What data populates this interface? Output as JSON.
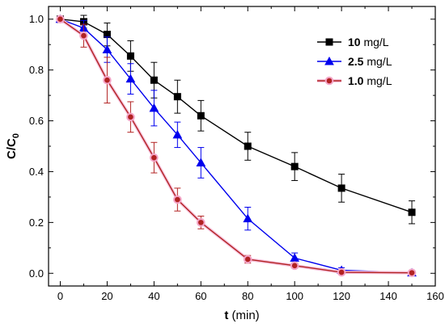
{
  "chart_data": {
    "type": "line",
    "xlabel_bold": "t",
    "xlabel_rest": " (min)",
    "ylabel_main": "C/C",
    "ylabel_sub": "0",
    "xlim": [
      -5,
      160
    ],
    "ylim": [
      -0.05,
      1.05
    ],
    "xticks": [
      0,
      20,
      40,
      60,
      80,
      100,
      120,
      140,
      160
    ],
    "yticks": [
      0.0,
      0.2,
      0.4,
      0.6,
      0.8,
      1.0
    ],
    "ytick_labels": [
      "0.0",
      "0.2",
      "0.4",
      "0.6",
      "0.8",
      "1.0"
    ],
    "legend_position": "top-right",
    "error_bars": true,
    "series": [
      {
        "name": "mg/L",
        "name_bold": "10",
        "color": "#000000",
        "marker": "square",
        "x": [
          0,
          10,
          20,
          30,
          40,
          50,
          60,
          80,
          100,
          120,
          150
        ],
        "y": [
          1.0,
          0.99,
          0.94,
          0.855,
          0.76,
          0.695,
          0.62,
          0.5,
          0.42,
          0.335,
          0.24
        ],
        "err": [
          0.01,
          0.025,
          0.045,
          0.06,
          0.07,
          0.065,
          0.06,
          0.055,
          0.055,
          0.055,
          0.045
        ]
      },
      {
        "name": "mg/L",
        "name_bold": "2.5",
        "color": "#0000ee",
        "marker": "triangle",
        "x": [
          0,
          10,
          20,
          30,
          40,
          50,
          60,
          80,
          100,
          120,
          150
        ],
        "y": [
          1.0,
          0.965,
          0.88,
          0.765,
          0.65,
          0.545,
          0.435,
          0.215,
          0.06,
          0.012,
          0.002
        ],
        "err": [
          0.01,
          0.03,
          0.05,
          0.06,
          0.07,
          0.05,
          0.06,
          0.045,
          0.02,
          0.01,
          0.005
        ]
      },
      {
        "name": "mg/L",
        "name_bold": "1.0",
        "color": "#b22222",
        "marker": "circle",
        "x": [
          0,
          10,
          20,
          30,
          40,
          50,
          60,
          80,
          100,
          120,
          150
        ],
        "y": [
          1.0,
          0.935,
          0.76,
          0.615,
          0.455,
          0.29,
          0.2,
          0.055,
          0.03,
          0.004,
          0.002
        ],
        "err": [
          0.01,
          0.045,
          0.09,
          0.06,
          0.06,
          0.045,
          0.025,
          0.015,
          0.01,
          0.005,
          0.004
        ]
      }
    ]
  }
}
